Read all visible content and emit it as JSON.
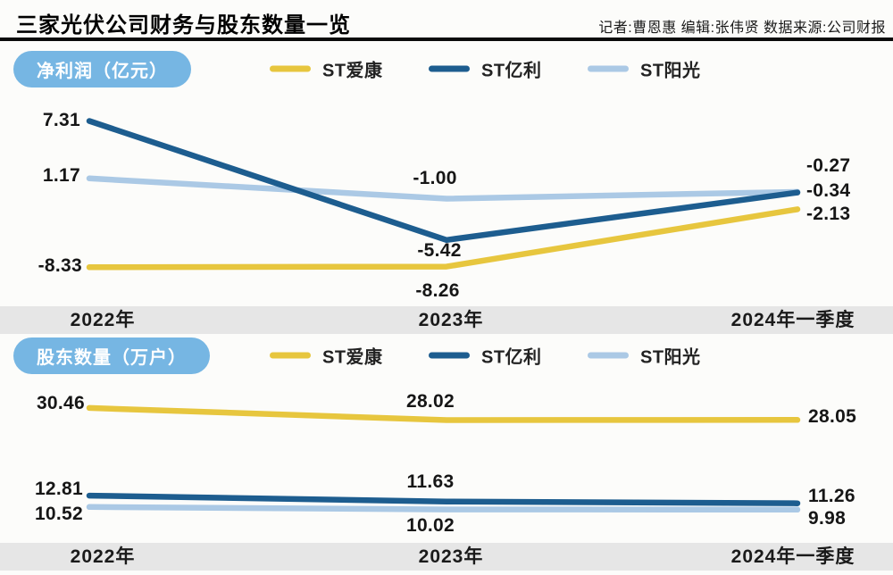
{
  "page": {
    "title": "三家光伏公司财务与股东数量一览",
    "credits": "记者:曹恩惠  编辑:张伟贤  数据来源:公司财报"
  },
  "colors": {
    "pill_blue": "#76b6e3",
    "band_gray": "#e6e6e6",
    "series_yellow": "#e7c63e",
    "series_dark_blue": "#1d5d8f",
    "series_light_blue": "#abc9e5",
    "background": "#fcfcfa",
    "title_black": "#000000"
  },
  "chart_data": [
    {
      "type": "line",
      "title": "净利润（亿元）",
      "categories": [
        "2022年",
        "2023年",
        "2024年一季度"
      ],
      "series": [
        {
          "name": "ST爱康",
          "color": "#e7c63e",
          "values": [
            -8.33,
            -8.26,
            -2.13
          ],
          "labels": [
            "-8.33",
            "-8.26",
            "-2.13"
          ]
        },
        {
          "name": "ST亿利",
          "color": "#1d5d8f",
          "values": [
            7.31,
            -5.42,
            -0.34
          ],
          "labels": [
            "7.31",
            "-5.42",
            "-0.34"
          ]
        },
        {
          "name": "ST阳光",
          "color": "#abc9e5",
          "values": [
            1.17,
            -1.0,
            -0.27
          ],
          "labels": [
            "1.17",
            "-1.00",
            "-0.27"
          ]
        }
      ],
      "ylim": [
        -12.5,
        10.7
      ],
      "xlabel": "",
      "ylabel": "净利润（亿元）",
      "grid": false,
      "legend_position": "top",
      "data_labels": true
    },
    {
      "type": "line",
      "title": "股东数量（万户）",
      "categories": [
        "2022年",
        "2023年",
        "2024年一季度"
      ],
      "series": [
        {
          "name": "ST爱康",
          "color": "#e7c63e",
          "values": [
            30.46,
            28.02,
            28.05
          ],
          "labels": [
            "30.46",
            "28.02",
            "28.05"
          ]
        },
        {
          "name": "ST亿利",
          "color": "#1d5d8f",
          "values": [
            12.81,
            11.63,
            11.26
          ],
          "labels": [
            "12.81",
            "11.63",
            "11.26"
          ]
        },
        {
          "name": "ST阳光",
          "color": "#abc9e5",
          "values": [
            10.52,
            10.02,
            9.98
          ],
          "labels": [
            "10.52",
            "10.02",
            "9.98"
          ]
        }
      ],
      "ylim": [
        3.3,
        36.2
      ],
      "xlabel": "",
      "ylabel": "股东数量（万户）",
      "grid": false,
      "legend_position": "top",
      "data_labels": true
    }
  ]
}
